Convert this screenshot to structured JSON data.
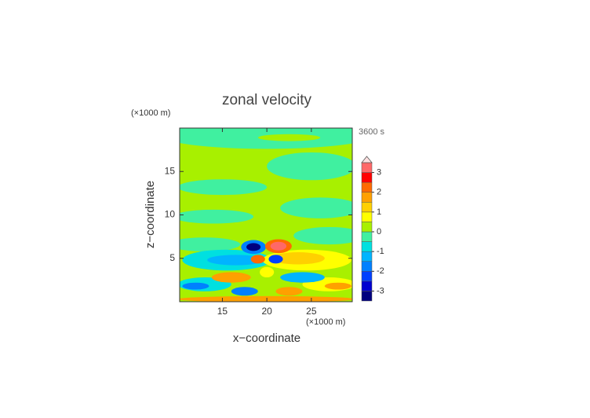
{
  "chart_data": {
    "type": "contour",
    "title": "zonal velocity",
    "xlabel": "x−coordinate",
    "ylabel": "z−coordinate",
    "x_unit": "(×1000 m)",
    "y_unit": "(×1000 m)",
    "time_label": "3600 s",
    "xlim": [
      10.2,
      29.6
    ],
    "ylim": [
      0,
      20
    ],
    "xticks": [
      15,
      20,
      25
    ],
    "yticks": [
      5,
      10,
      15
    ],
    "background_value": 0.25,
    "colorbar": {
      "levels": [
        -3.5,
        -3,
        -2.5,
        -2,
        -1.5,
        -1,
        -0.5,
        0,
        0.5,
        1,
        1.5,
        2,
        2.5,
        3,
        3.5
      ],
      "colors": [
        "#00007f",
        "#0000d0",
        "#0040ff",
        "#0080ff",
        "#00b4ff",
        "#00e0e0",
        "#40f0a0",
        "#a8f000",
        "#ffff00",
        "#ffd000",
        "#ffa000",
        "#ff6a00",
        "#ff0000",
        "#ff6868",
        "#ffa8a8"
      ],
      "over_color": "#ffe0e0",
      "ticks": [
        -3,
        -2,
        -1,
        0,
        1,
        2,
        3
      ]
    },
    "regions": [
      {
        "x": 20,
        "z": 19.2,
        "rx": 12,
        "rz": 1.6,
        "value": -0.25
      },
      {
        "x": 22.5,
        "z": 18.9,
        "rx": 3.5,
        "rz": 0.4,
        "value": 0.25
      },
      {
        "x": 25,
        "z": 15.6,
        "rx": 5,
        "rz": 1.6,
        "value": -0.25
      },
      {
        "x": 15,
        "z": 13.2,
        "rx": 5,
        "rz": 0.9,
        "value": -0.25
      },
      {
        "x": 26,
        "z": 10.8,
        "rx": 4.5,
        "rz": 1.2,
        "value": -0.25
      },
      {
        "x": 14,
        "z": 9.8,
        "rx": 4.5,
        "rz": 0.8,
        "value": -0.25
      },
      {
        "x": 27,
        "z": 7.6,
        "rx": 4,
        "rz": 1.0,
        "value": -0.25
      },
      {
        "x": 13,
        "z": 6.6,
        "rx": 4,
        "rz": 0.8,
        "value": -0.25
      },
      {
        "x": 15.5,
        "z": 4.8,
        "rx": 5,
        "rz": 1.2,
        "value": -0.75
      },
      {
        "x": 16.5,
        "z": 4.8,
        "rx": 3.2,
        "rz": 0.6,
        "value": -1.25
      },
      {
        "x": 24.5,
        "z": 4.8,
        "rx": 5,
        "rz": 1.2,
        "value": 0.75
      },
      {
        "x": 23.5,
        "z": 5,
        "rx": 3,
        "rz": 0.7,
        "value": 1.25
      },
      {
        "x": 13,
        "z": 2,
        "rx": 3,
        "rz": 0.8,
        "value": -0.75
      },
      {
        "x": 12,
        "z": 1.8,
        "rx": 1.5,
        "rz": 0.4,
        "value": -1.75
      },
      {
        "x": 27,
        "z": 2,
        "rx": 3,
        "rz": 0.8,
        "value": 0.75
      },
      {
        "x": 28,
        "z": 1.8,
        "rx": 1.5,
        "rz": 0.4,
        "value": 1.75
      },
      {
        "x": 16,
        "z": 2.8,
        "rx": 2.2,
        "rz": 0.6,
        "value": 1.75
      },
      {
        "x": 24,
        "z": 2.8,
        "rx": 2.5,
        "rz": 0.6,
        "value": -1.25
      },
      {
        "x": 20,
        "z": 3.4,
        "rx": 0.8,
        "rz": 0.6,
        "value": 0.75
      },
      {
        "x": 17.5,
        "z": 1.2,
        "rx": 1.5,
        "rz": 0.5,
        "value": -1.75
      },
      {
        "x": 22.5,
        "z": 1.2,
        "rx": 1.5,
        "rz": 0.5,
        "value": 1.75
      },
      {
        "x": 20,
        "z": 0.3,
        "rx": 10,
        "rz": 0.35,
        "value": 1.75
      },
      {
        "x": 18.5,
        "z": 6.3,
        "rx": 1.4,
        "rz": 0.8,
        "value": -1.75
      },
      {
        "x": 18.5,
        "z": 6.3,
        "rx": 0.8,
        "rz": 0.45,
        "value": -3.25
      },
      {
        "x": 21.3,
        "z": 6.4,
        "rx": 1.5,
        "rz": 0.8,
        "value": 2.25
      },
      {
        "x": 21.3,
        "z": 6.4,
        "rx": 0.9,
        "rz": 0.5,
        "value": 3.25
      },
      {
        "x": 19,
        "z": 4.9,
        "rx": 0.8,
        "rz": 0.5,
        "value": 2.25
      },
      {
        "x": 21,
        "z": 4.9,
        "rx": 0.8,
        "rz": 0.5,
        "value": -2.25
      }
    ]
  }
}
